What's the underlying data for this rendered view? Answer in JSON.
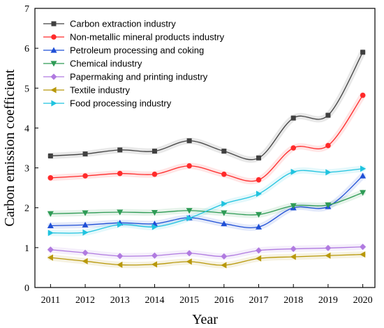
{
  "chart_data": {
    "type": "line",
    "title": "",
    "xlabel": "Year",
    "ylabel": "Carbon emission coefficient",
    "x": [
      2011,
      2012,
      2013,
      2014,
      2015,
      2016,
      2017,
      2018,
      2019,
      2020
    ],
    "xlim": [
      2010.55,
      2020.35
    ],
    "ylim": [
      0,
      7
    ],
    "yticks": [
      0,
      1,
      2,
      3,
      4,
      5,
      6,
      7
    ],
    "grid": false,
    "legend_position": "top-left",
    "series": [
      {
        "name": "Carbon extraction industry",
        "color": "#404040",
        "marker": "square",
        "values": [
          3.3,
          3.35,
          3.45,
          3.42,
          3.68,
          3.42,
          3.25,
          4.25,
          4.32,
          5.9
        ]
      },
      {
        "name": "Non-metallic mineral products industry",
        "color": "#ff2a2a",
        "marker": "circle",
        "values": [
          2.75,
          2.8,
          2.86,
          2.84,
          3.05,
          2.84,
          2.7,
          3.5,
          3.56,
          4.82
        ]
      },
      {
        "name": "Petroleum processing and coking",
        "color": "#1f4fd6",
        "marker": "triangle-up",
        "values": [
          1.55,
          1.57,
          1.62,
          1.6,
          1.75,
          1.6,
          1.52,
          2.0,
          2.03,
          2.8
        ]
      },
      {
        "name": "Chemical industry",
        "color": "#2e9b55",
        "marker": "triangle-down",
        "values": [
          1.85,
          1.87,
          1.89,
          1.88,
          1.93,
          1.87,
          1.83,
          2.05,
          2.07,
          2.38
        ]
      },
      {
        "name": "Papermaking and printing industry",
        "color": "#b07ae0",
        "marker": "diamond",
        "values": [
          0.95,
          0.87,
          0.79,
          0.8,
          0.86,
          0.78,
          0.93,
          0.97,
          0.99,
          1.02
        ]
      },
      {
        "name": "Textile industry",
        "color": "#b8980a",
        "marker": "triangle-left",
        "values": [
          0.75,
          0.66,
          0.57,
          0.58,
          0.65,
          0.56,
          0.73,
          0.77,
          0.8,
          0.83
        ]
      },
      {
        "name": "Food processing industry",
        "color": "#1fc3df",
        "marker": "triangle-right",
        "values": [
          1.37,
          1.38,
          1.58,
          1.52,
          1.74,
          2.1,
          2.35,
          2.9,
          2.89,
          2.98
        ]
      }
    ]
  }
}
